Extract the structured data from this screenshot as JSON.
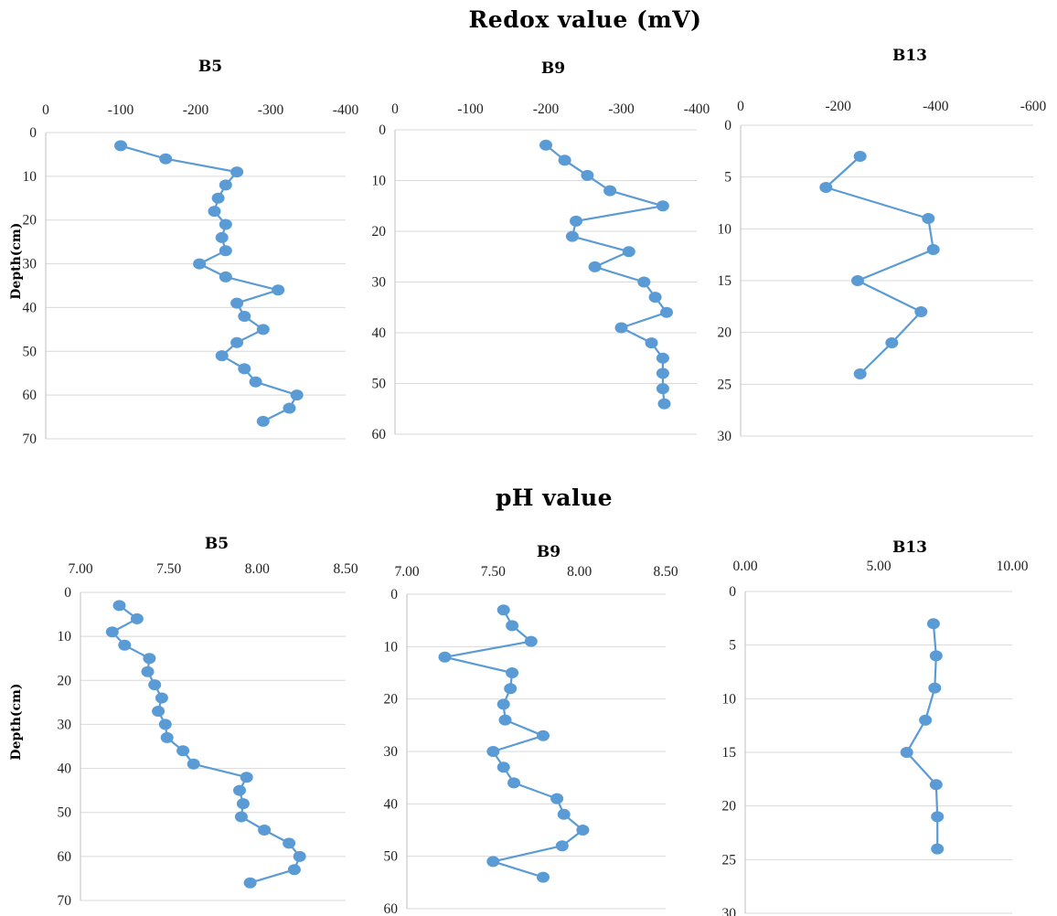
{
  "sections": [
    {
      "title": "Redox value (mV)"
    },
    {
      "title": "pH value"
    }
  ],
  "ylabel": "Depth(cm)",
  "chart_data": [
    {
      "type": "line",
      "section": 0,
      "title": "B5",
      "xticks": [
        "0",
        "-100",
        "-200",
        "-300",
        "-400"
      ],
      "xlim": [
        0,
        -400
      ],
      "yticks": [
        "0",
        "10",
        "20",
        "30",
        "40",
        "50",
        "60",
        "70"
      ],
      "ylim": [
        0,
        70
      ],
      "show_ylabel": true,
      "series": [
        {
          "color": "#5b9bd5",
          "x": [
            -100,
            -160,
            -255,
            -240,
            -230,
            -225,
            -240,
            -235,
            -240,
            -205,
            -240,
            -310,
            -255,
            -265,
            -290,
            -255,
            -235,
            -265,
            -280,
            -335,
            -325,
            -290
          ],
          "y": [
            3,
            6,
            9,
            12,
            15,
            18,
            21,
            24,
            27,
            30,
            33,
            36,
            39,
            42,
            45,
            48,
            51,
            54,
            57,
            60,
            63,
            66
          ]
        }
      ]
    },
    {
      "type": "line",
      "section": 0,
      "title": "B9",
      "xticks": [
        "0",
        "-100",
        "-200",
        "-300",
        "-400"
      ],
      "xlim": [
        0,
        -400
      ],
      "yticks": [
        "0",
        "10",
        "20",
        "30",
        "40",
        "50",
        "60"
      ],
      "ylim": [
        0,
        60
      ],
      "show_ylabel": false,
      "series": [
        {
          "color": "#5b9bd5",
          "x": [
            -200,
            -225,
            -255,
            -285,
            -355,
            -240,
            -235,
            -310,
            -265,
            -330,
            -345,
            -360,
            -300,
            -340,
            -355,
            -355,
            -355,
            -357
          ],
          "y": [
            3,
            6,
            9,
            12,
            15,
            18,
            21,
            24,
            27,
            30,
            33,
            36,
            39,
            42,
            45,
            48,
            51,
            54
          ]
        }
      ]
    },
    {
      "type": "line",
      "section": 0,
      "title": "B13",
      "xticks": [
        "0",
        "-200",
        "-400",
        "-600"
      ],
      "xlim": [
        0,
        -600
      ],
      "yticks": [
        "0",
        "5",
        "10",
        "15",
        "20",
        "25",
        "30"
      ],
      "ylim": [
        0,
        30
      ],
      "show_ylabel": false,
      "series": [
        {
          "color": "#5b9bd5",
          "x": [
            -245,
            -175,
            -385,
            -395,
            -240,
            -370,
            -310,
            -245
          ],
          "y": [
            3,
            6,
            9,
            12,
            15,
            18,
            21,
            24
          ]
        }
      ]
    },
    {
      "type": "line",
      "section": 1,
      "title": "B5",
      "xticks": [
        "7.00",
        "7.50",
        "8.00",
        "8.50"
      ],
      "xlim": [
        7.0,
        8.5
      ],
      "yticks": [
        "0",
        "10",
        "20",
        "30",
        "40",
        "50",
        "60",
        "70"
      ],
      "ylim": [
        0,
        70
      ],
      "show_ylabel": true,
      "series": [
        {
          "color": "#5b9bd5",
          "x": [
            7.22,
            7.32,
            7.18,
            7.25,
            7.39,
            7.38,
            7.42,
            7.46,
            7.44,
            7.48,
            7.49,
            7.58,
            7.64,
            7.94,
            7.9,
            7.92,
            7.91,
            8.04,
            8.18,
            8.24,
            8.21,
            7.96
          ],
          "y": [
            3,
            6,
            9,
            12,
            15,
            18,
            21,
            24,
            27,
            30,
            33,
            36,
            39,
            42,
            45,
            48,
            51,
            54,
            57,
            60,
            63,
            66
          ]
        }
      ]
    },
    {
      "type": "line",
      "section": 1,
      "title": "B9",
      "xticks": [
        "7.00",
        "7.50",
        "8.00",
        "8.50"
      ],
      "xlim": [
        7.0,
        8.5
      ],
      "yticks": [
        "0",
        "10",
        "20",
        "30",
        "40",
        "50",
        "60"
      ],
      "ylim": [
        0,
        60
      ],
      "show_ylabel": false,
      "series": [
        {
          "color": "#5b9bd5",
          "x": [
            7.56,
            7.61,
            7.72,
            7.22,
            7.61,
            7.6,
            7.56,
            7.57,
            7.79,
            7.5,
            7.56,
            7.62,
            7.87,
            7.91,
            8.02,
            7.9,
            7.5,
            7.79
          ],
          "y": [
            3,
            6,
            9,
            12,
            15,
            18,
            21,
            24,
            27,
            30,
            33,
            36,
            39,
            42,
            45,
            48,
            51,
            54
          ]
        }
      ]
    },
    {
      "type": "line",
      "section": 1,
      "title": "B13",
      "xticks": [
        "0.00",
        "5.00",
        "10.00"
      ],
      "xlim": [
        0,
        10
      ],
      "yticks": [
        "0",
        "5",
        "10",
        "15",
        "20",
        "25",
        "30"
      ],
      "ylim": [
        0,
        30
      ],
      "show_ylabel": false,
      "series": [
        {
          "color": "#5b9bd5",
          "x": [
            7.05,
            7.15,
            7.1,
            6.75,
            6.05,
            7.15,
            7.2,
            7.2
          ],
          "y": [
            3,
            6,
            9,
            12,
            15,
            18,
            21,
            24
          ]
        }
      ]
    }
  ]
}
